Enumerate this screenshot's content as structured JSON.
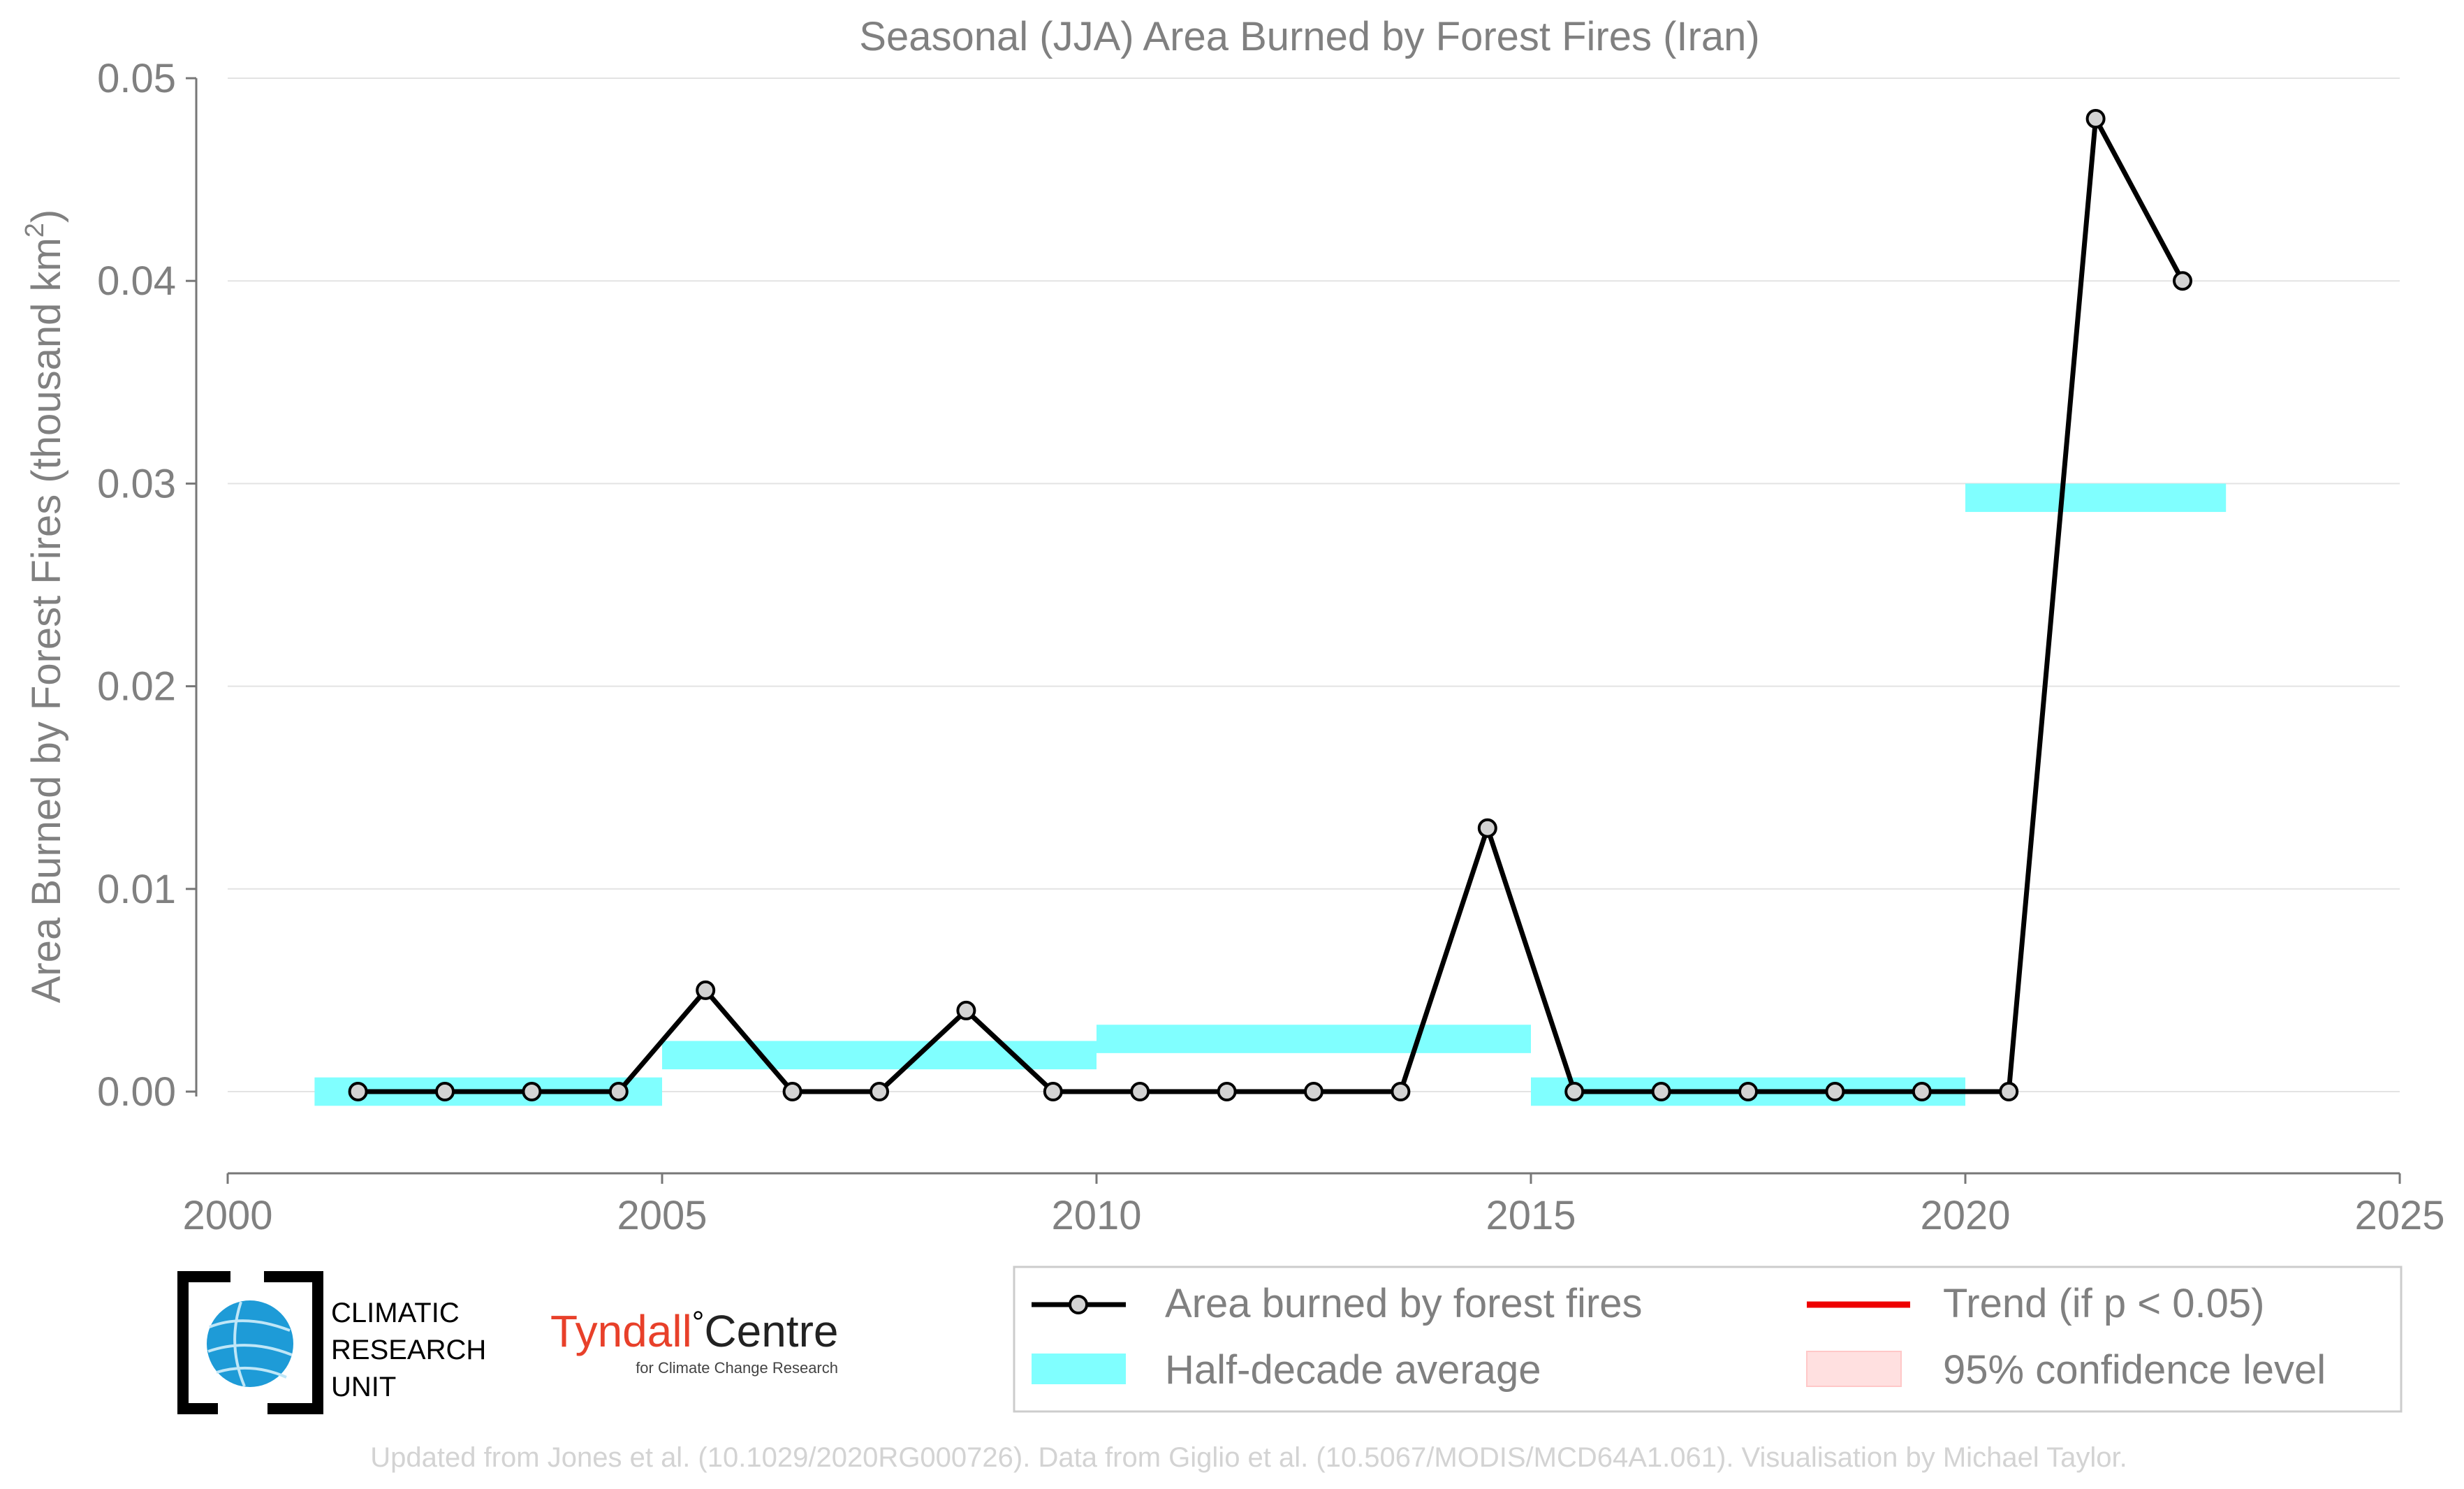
{
  "chart_data": {
    "type": "line",
    "title": "Seasonal (JJA) Area Burned by Forest Fires (Iran)",
    "ylabel": "Area Burned by Forest Fires (thousand km²)",
    "ylabel_main": "Area Burned by Forest Fires (thousand km",
    "ylabel_sup": "2",
    "ylabel_end": ")",
    "xlim": [
      2000,
      2025
    ],
    "ylim": [
      -0.0039,
      0.05
    ],
    "xticks": [
      2000,
      2005,
      2010,
      2015,
      2020,
      2025
    ],
    "yticks": [
      0.0,
      0.01,
      0.02,
      0.03,
      0.04,
      0.05
    ],
    "ytick_labels": [
      "0.00",
      "0.01",
      "0.02",
      "0.03",
      "0.04",
      "0.05"
    ],
    "grid": "horizontal",
    "series": [
      {
        "name": "Area burned by forest fires",
        "x": [
          2001.5,
          2002.5,
          2003.5,
          2004.5,
          2005.5,
          2006.5,
          2007.5,
          2008.5,
          2009.5,
          2010.5,
          2011.5,
          2012.5,
          2013.5,
          2014.5,
          2015.5,
          2016.5,
          2017.5,
          2018.5,
          2019.5,
          2020.5,
          2021.5,
          2022.5
        ],
        "values": [
          0,
          0,
          0,
          0,
          0.005,
          0,
          0,
          0.004,
          0,
          0,
          0,
          0,
          0,
          0.013,
          0,
          0,
          0,
          0,
          0,
          0,
          0.048,
          0.04
        ],
        "color": "#000000"
      }
    ],
    "half_decade_average": {
      "name": "Half-decade average",
      "color": "#80ffff",
      "segments": [
        {
          "x0": 2001,
          "x1": 2005,
          "value": 0.0
        },
        {
          "x0": 2005,
          "x1": 2010,
          "value": 0.0018
        },
        {
          "x0": 2010,
          "x1": 2015,
          "value": 0.0026
        },
        {
          "x0": 2015,
          "x1": 2020,
          "value": 0.0
        },
        {
          "x0": 2020,
          "x1": 2023,
          "value": 0.0293
        }
      ]
    },
    "legend": {
      "position": "bottom-right",
      "entries": [
        {
          "label": "Area burned by forest fires",
          "kind": "line-marker",
          "color": "#000000"
        },
        {
          "label": "Trend (if p < 0.05)",
          "kind": "line",
          "color": "#ee0000"
        },
        {
          "label": "Half-decade average",
          "kind": "patch",
          "color": "#80ffff"
        },
        {
          "label": "95% confidence level",
          "kind": "patch",
          "color": "#ffe0e0"
        }
      ]
    }
  },
  "logos": {
    "cru_lines": [
      "CLIMATIC",
      "RESEARCH",
      "UNIT"
    ],
    "tyndall_name": "Tyndall",
    "tyndall_degree": "°",
    "tyndall_centre": "Centre",
    "tyndall_sub": "for Climate Change Research"
  },
  "credit": "Updated from Jones et al. (10.1029/2020RG000726). Data from Giglio et al. (10.5067/MODIS/MCD64A1.061). Visualisation by Michael Taylor.",
  "colors": {
    "text_gray": "#808080",
    "grid": "#e3e3e3",
    "credit_gray": "#d3d3d3",
    "tyndall_red": "#e8402a",
    "cru_blue": "#1e9bd7"
  }
}
